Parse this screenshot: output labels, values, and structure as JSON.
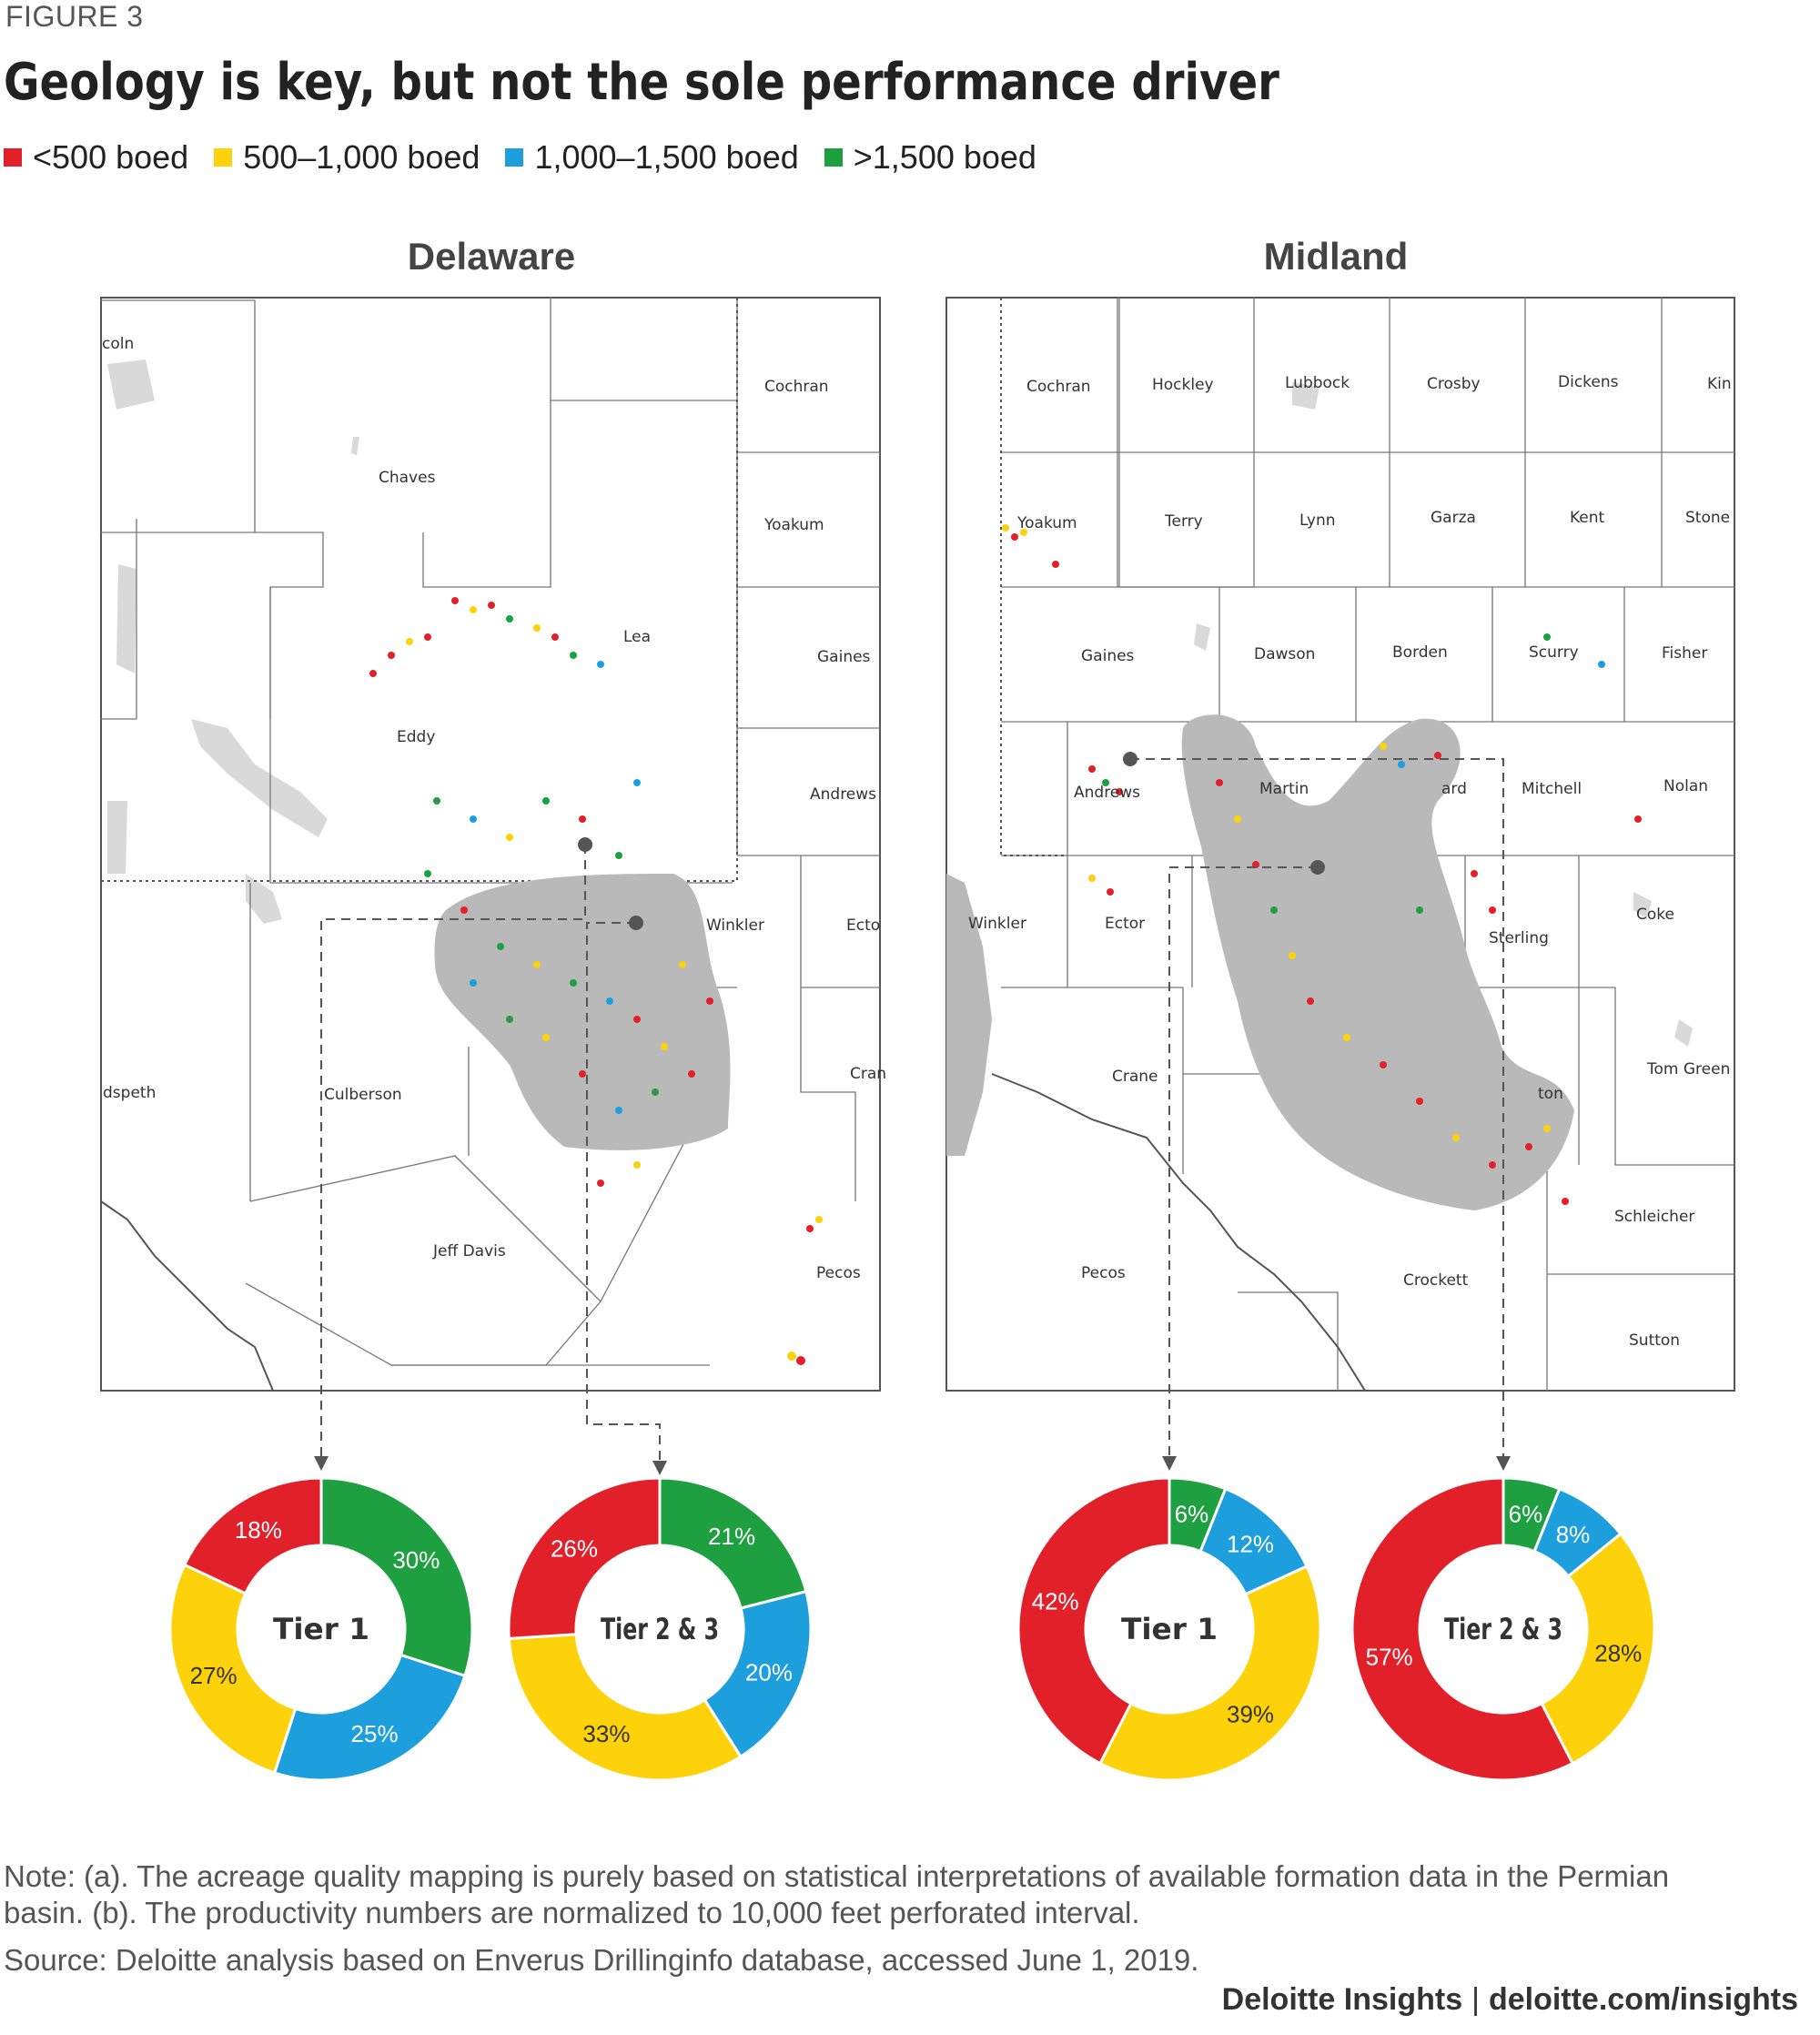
{
  "figure_label": "FIGURE 3",
  "title": "Geology is key, but not the sole performance driver",
  "legend": [
    {
      "label": "<500 boed",
      "color": "#e2202a"
    },
    {
      "label": "500–1,000 boed",
      "color": "#fdd20a"
    },
    {
      "label": "1,000–1,500 boed",
      "color": "#1c9fdc"
    },
    {
      "label": ">1,500 boed",
      "color": "#1fa040"
    }
  ],
  "maps": {
    "delaware": {
      "title": "Delaware",
      "counties": [
        "Cochran",
        "Yoakum",
        "Gaines",
        "Andrews",
        "Chaves",
        "Eddy",
        "Lea",
        "Winkler",
        "Ecto",
        "Culberson",
        "Jeff Davis",
        "Pecos",
        "Cran",
        "dspeth",
        "coln"
      ]
    },
    "midland": {
      "title": "Midland",
      "counties": [
        "Cochran",
        "Hockley",
        "Lubbock",
        "Crosby",
        "Dickens",
        "Kin",
        "Yoakum",
        "Terry",
        "Lynn",
        "Garza",
        "Kent",
        "Stone",
        "Gaines",
        "Dawson",
        "Borden",
        "Scurry",
        "Fisher",
        "Andrews",
        "Martin",
        "ard",
        "Mitchell",
        "Nolan",
        "Winkler",
        "Ector",
        "Sterling",
        "Coke",
        "Crane",
        "ton",
        "Tom Green",
        "Schleicher",
        "Pecos",
        "Crockett",
        "Sutton"
      ]
    }
  },
  "chart_data": [
    {
      "type": "pie",
      "title": "Tier 1",
      "group": "Delaware",
      "categories": [
        "<500 boed",
        "500–1,000 boed",
        "1,000–1,500 boed",
        ">1,500 boed"
      ],
      "values": [
        18,
        27,
        25,
        30
      ],
      "labels": [
        "18%",
        "27%",
        "25%",
        "30%"
      ]
    },
    {
      "type": "pie",
      "title": "Tier 2 & 3",
      "group": "Delaware",
      "categories": [
        "<500 boed",
        "500–1,000 boed",
        "1,000–1,500 boed",
        ">1,500 boed"
      ],
      "values": [
        26,
        33,
        20,
        21
      ],
      "labels": [
        "26%",
        "33%",
        "20%",
        "21%"
      ]
    },
    {
      "type": "pie",
      "title": "Tier 1",
      "group": "Midland",
      "categories": [
        "<500 boed",
        "500–1,000 boed",
        "1,000–1,500 boed",
        ">1,500 boed"
      ],
      "values": [
        42,
        39,
        12,
        6
      ],
      "labels": [
        "42%",
        "39%",
        "12%",
        "6%"
      ]
    },
    {
      "type": "pie",
      "title": "Tier 2 & 3",
      "group": "Midland",
      "categories": [
        "<500 boed",
        "500–1,000 boed",
        "1,000–1,500 boed",
        ">1,500 boed"
      ],
      "values": [
        57,
        28,
        8,
        6
      ],
      "labels": [
        "57%",
        "28%",
        "8%",
        "6%"
      ]
    }
  ],
  "notes": {
    "note": "Note: (a). The acreage quality mapping is purely based on statistical interpretations of available formation data in the Permian basin. (b). The productivity numbers are normalized to 10,000 feet perforated interval.",
    "source": "Source: Deloitte analysis based on Enverus Drillinginfo database, accessed June 1, 2019."
  },
  "footer": {
    "brand": "Deloitte Insights",
    "separator": "|",
    "url": "deloitte.com/insights"
  }
}
